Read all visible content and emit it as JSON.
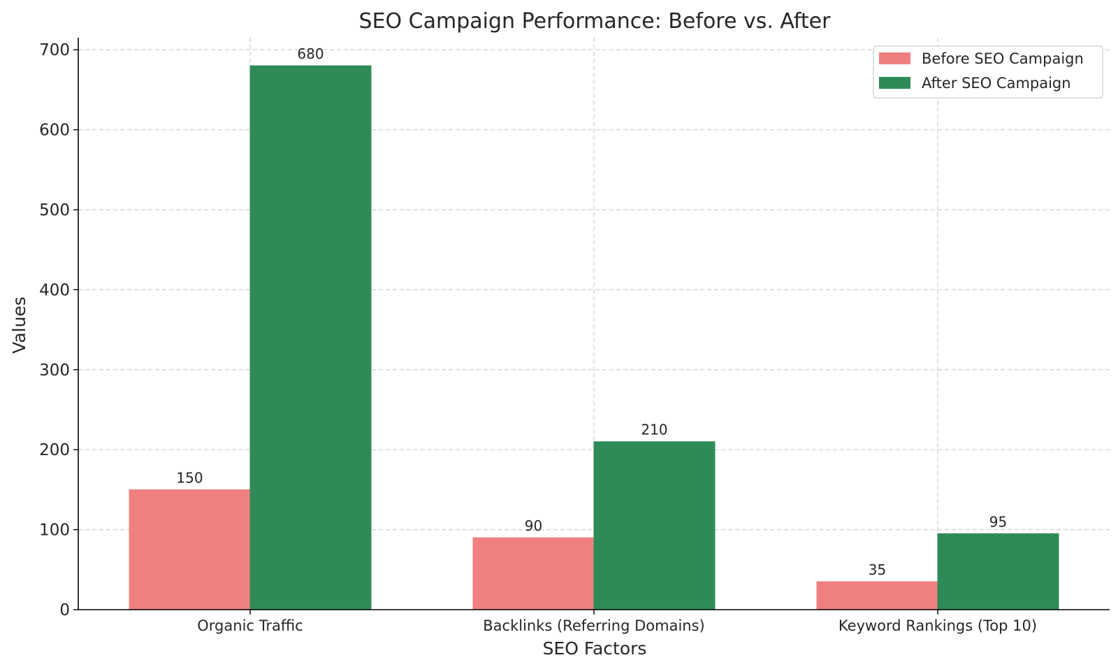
{
  "chart_data": {
    "type": "bar",
    "title": "SEO Campaign Performance: Before vs. After",
    "xlabel": "SEO Factors",
    "ylabel": "Values",
    "categories": [
      "Organic Traffic",
      "Backlinks (Referring Domains)",
      "Keyword Rankings (Top 10)"
    ],
    "series": [
      {
        "name": "Before SEO Campaign",
        "values": [
          150,
          90,
          35
        ],
        "color": "#f08080"
      },
      {
        "name": "After SEO Campaign",
        "values": [
          680,
          210,
          95
        ],
        "color": "#2e8b57"
      }
    ],
    "ylim": [
      0,
      715
    ],
    "yticks": [
      0,
      100,
      200,
      300,
      400,
      500,
      600,
      700
    ],
    "grid": true,
    "legend_position": "top-right"
  }
}
